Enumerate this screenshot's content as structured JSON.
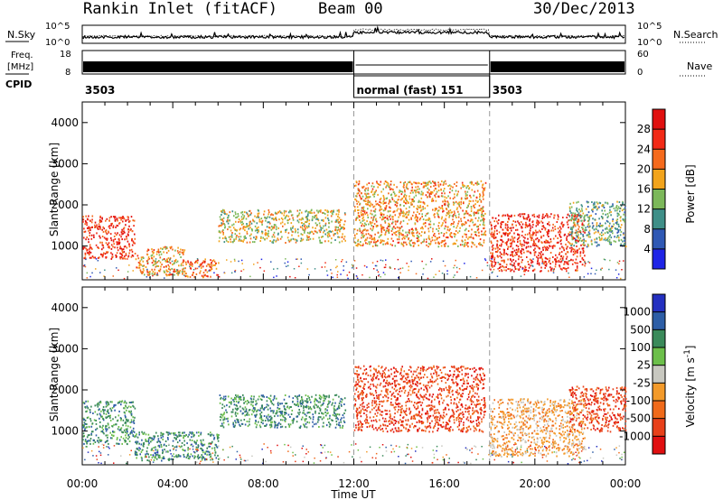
{
  "chart_data": [
    {
      "type": "heatmap",
      "panel": "power",
      "header": {
        "station": "Rankin Inlet (fitACF)",
        "beam": "Beam 00",
        "date": "30/Dec/2013"
      },
      "status_panels": {
        "nsky_label": "N.Sky",
        "nsearch_label": "N.Search",
        "noise_ticks_left": [
          "10^5",
          "10^0"
        ],
        "noise_ticks_right": [
          "10^5",
          "10^0"
        ],
        "freq_label": "Freq.",
        "freq_unit": "[MHz]",
        "freq_ticks": [
          "18",
          "8"
        ],
        "nave_label": "Nave",
        "nave_ticks": [
          "60",
          "0"
        ],
        "cpid_label": "CPID",
        "cpid_segments": [
          {
            "start_hour": 0,
            "end_hour": 12,
            "text": "3503"
          },
          {
            "start_hour": 12,
            "end_hour": 18,
            "text": "normal (fast) 151"
          },
          {
            "start_hour": 18,
            "end_hour": 24,
            "text": "3503"
          }
        ]
      },
      "ylabel": "Slant Range [km]",
      "ylim": [
        180,
        4500
      ],
      "yticks": [
        1000,
        2000,
        3000,
        4000
      ],
      "xlim": [
        "00:00",
        "24:00"
      ],
      "colorbar": {
        "label": "Power [dB]",
        "ticks": [
          "4",
          "8",
          "12",
          "16",
          "20",
          "24",
          "28"
        ],
        "colors": [
          "#1f24e6",
          "#2f58b4",
          "#3f8f88",
          "#7cb85a",
          "#f2a41c",
          "#f56a1c",
          "#f22a16",
          "#e0100f"
        ]
      },
      "scatter_regions": [
        {
          "start_hour": 0.0,
          "end_hour": 2.3,
          "range_min": 700,
          "range_max": 1750,
          "value": 28
        },
        {
          "start_hour": 2.3,
          "end_hour": 4.5,
          "range_min": 300,
          "range_max": 1000,
          "value": 20
        },
        {
          "start_hour": 4.5,
          "end_hour": 6.0,
          "range_min": 250,
          "range_max": 700,
          "value": 24
        },
        {
          "start_hour": 6.0,
          "end_hour": 11.6,
          "range_min": 1100,
          "range_max": 1900,
          "value": 16
        },
        {
          "start_hour": 12.0,
          "end_hour": 17.8,
          "range_min": 1000,
          "range_max": 2600,
          "value": 20
        },
        {
          "start_hour": 18.0,
          "end_hour": 22.2,
          "range_min": 400,
          "range_max": 1800,
          "value": 28
        },
        {
          "start_hour": 21.5,
          "end_hour": 24.0,
          "range_min": 1000,
          "range_max": 2100,
          "value": 12
        }
      ]
    },
    {
      "type": "heatmap",
      "panel": "velocity",
      "xlabel": "Time UT",
      "ylabel": "Slant Range [km]",
      "ylim": [
        180,
        4500
      ],
      "yticks": [
        1000,
        2000,
        3000,
        4000
      ],
      "xlim": [
        "00:00",
        "24:00"
      ],
      "xticks": [
        "00:00",
        "04:00",
        "08:00",
        "12:00",
        "16:00",
        "20:00",
        "00:00"
      ],
      "colorbar": {
        "label": "Velocity [m s^-1]",
        "ticks": [
          "1000",
          "500",
          "100",
          "25",
          "-25",
          "-100",
          "-500",
          "-1000"
        ],
        "colors": [
          "#2430c0",
          "#2d5ea6",
          "#3a8a5a",
          "#6cbf4a",
          "#c8c8c0",
          "#f39a2a",
          "#f06a1a",
          "#e8401a",
          "#e00f10"
        ]
      },
      "scatter_regions": [
        {
          "start_hour": 0.0,
          "end_hour": 2.3,
          "range_min": 700,
          "range_max": 1750,
          "value": 100
        },
        {
          "start_hour": 2.3,
          "end_hour": 6.0,
          "range_min": 300,
          "range_max": 1000,
          "value": 100
        },
        {
          "start_hour": 6.0,
          "end_hour": 11.6,
          "range_min": 1100,
          "range_max": 1900,
          "value": 100
        },
        {
          "start_hour": 12.0,
          "end_hour": 17.8,
          "range_min": 1000,
          "range_max": 2600,
          "value": -500
        },
        {
          "start_hour": 18.0,
          "end_hour": 22.2,
          "range_min": 400,
          "range_max": 1800,
          "value": -25
        },
        {
          "start_hour": 21.5,
          "end_hour": 24.0,
          "range_min": 1000,
          "range_max": 2100,
          "value": -500
        }
      ]
    }
  ]
}
